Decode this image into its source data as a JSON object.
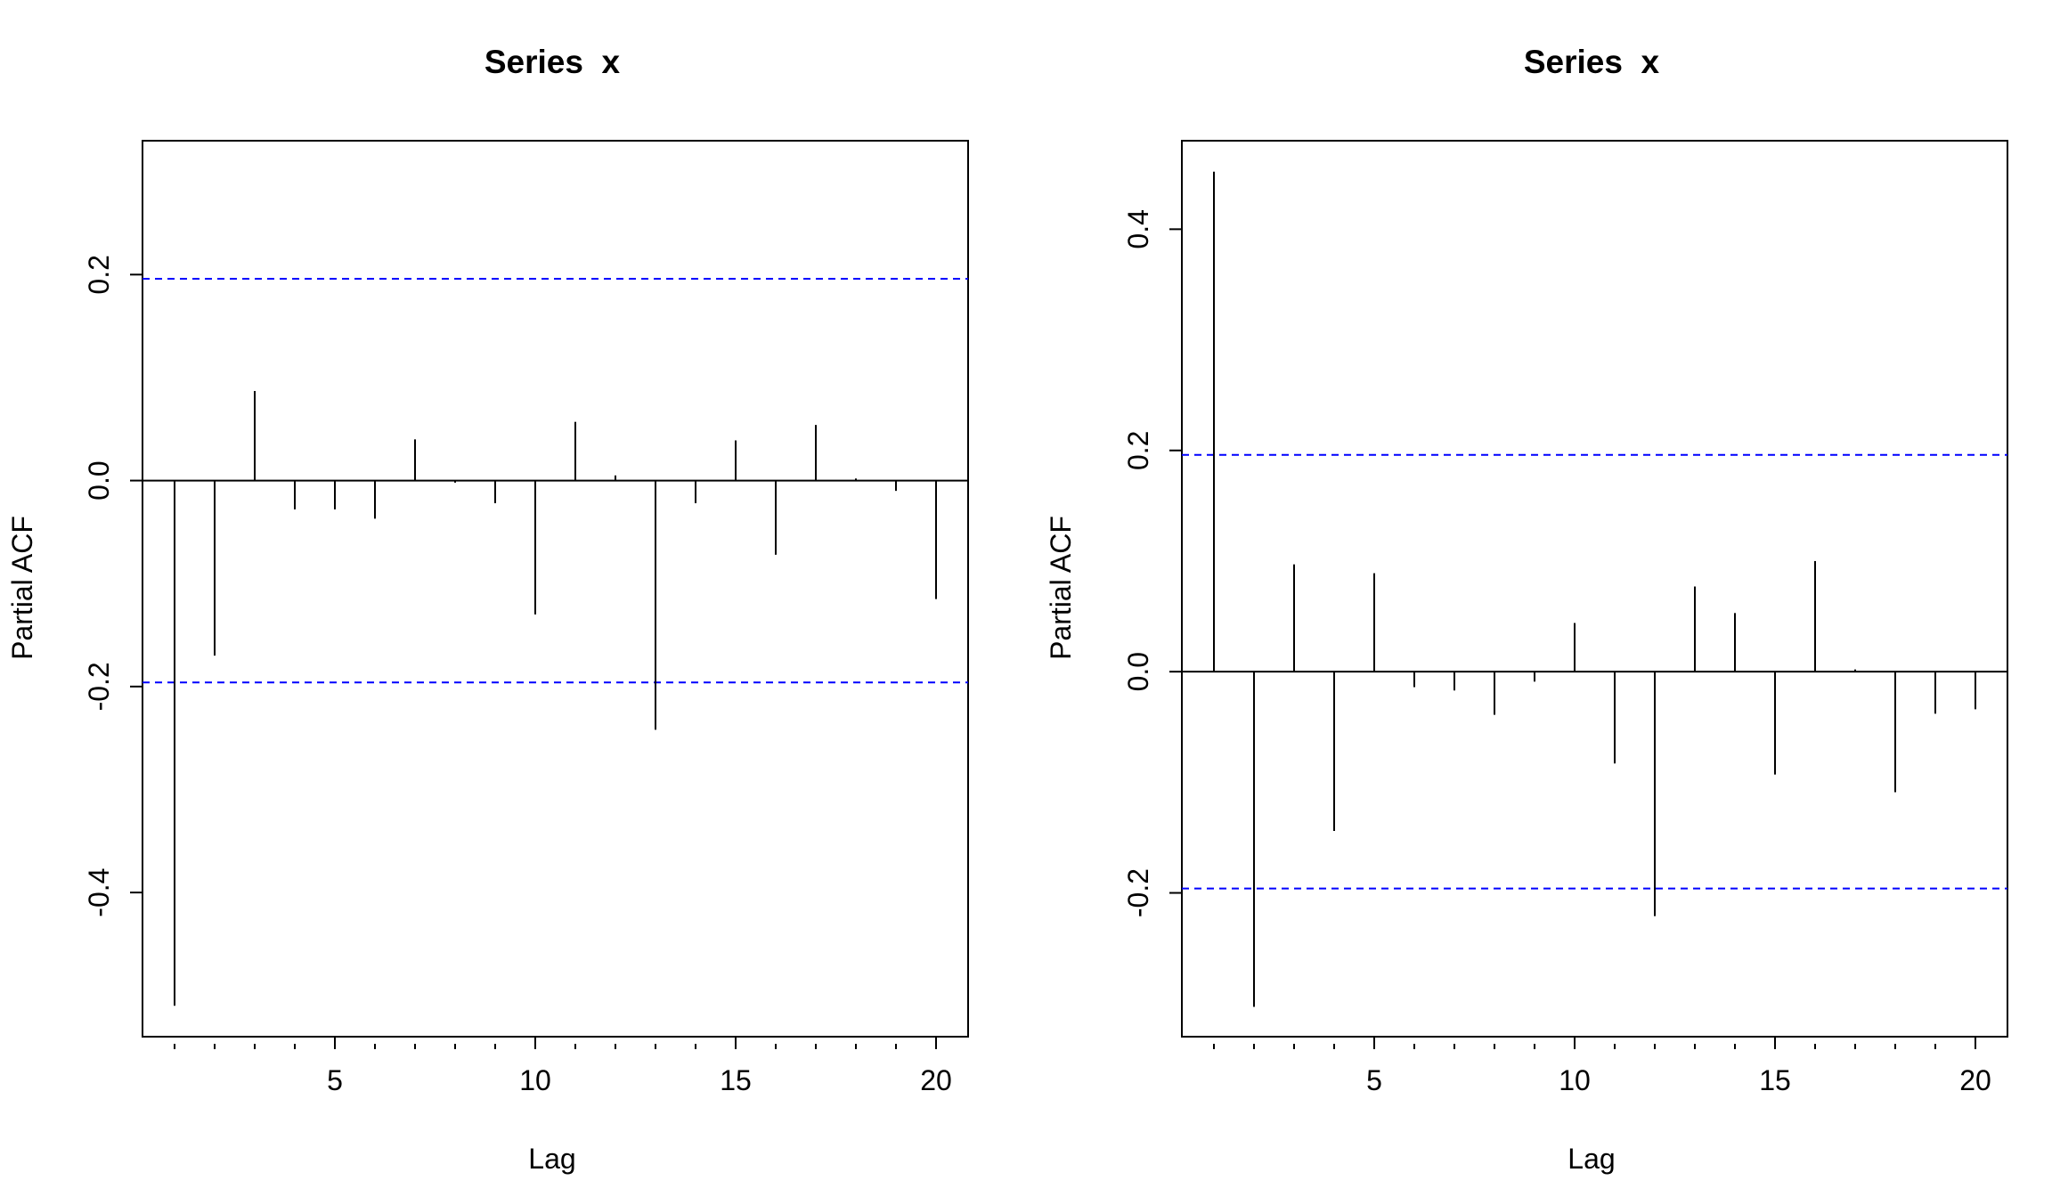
{
  "chart_data": [
    {
      "type": "bar",
      "title": "Series  x",
      "xlabel": "Lag",
      "ylabel": "Partial ACF",
      "xlim": [
        0.2,
        20.8
      ],
      "ylim": [
        -0.54,
        0.33
      ],
      "x_ticks": [
        5,
        10,
        15,
        20
      ],
      "y_ticks": [
        -0.4,
        -0.2,
        0.0,
        0.2
      ],
      "y_tick_labels": [
        "-0.4",
        "-0.2",
        "0.0",
        "0.2"
      ],
      "x": [
        1,
        2,
        3,
        4,
        5,
        6,
        7,
        8,
        9,
        10,
        11,
        12,
        13,
        14,
        15,
        16,
        17,
        18,
        19,
        20
      ],
      "values": [
        -0.51,
        -0.17,
        0.087,
        -0.028,
        -0.028,
        -0.037,
        0.04,
        -0.002,
        -0.022,
        -0.13,
        0.057,
        0.005,
        -0.242,
        -0.022,
        0.039,
        -0.072,
        0.054,
        0.002,
        -0.01,
        -0.115
      ],
      "ci_lines": [
        0.196,
        -0.196
      ],
      "ci_color": "#0000ff",
      "bar_color": "#000000",
      "grid": false
    },
    {
      "type": "bar",
      "title": "Series  x",
      "xlabel": "Lag",
      "ylabel": "Partial ACF",
      "xlim": [
        0.2,
        20.8
      ],
      "ylim": [
        -0.33,
        0.48
      ],
      "x_ticks": [
        5,
        10,
        15,
        20
      ],
      "y_ticks": [
        -0.2,
        0.0,
        0.2,
        0.4
      ],
      "y_tick_labels": [
        "-0.2",
        "0.0",
        "0.2",
        "0.4"
      ],
      "x": [
        1,
        2,
        3,
        4,
        5,
        6,
        7,
        8,
        9,
        10,
        11,
        12,
        13,
        14,
        15,
        16,
        17,
        18,
        19,
        20
      ],
      "values": [
        0.452,
        -0.303,
        0.097,
        -0.144,
        0.089,
        -0.014,
        -0.017,
        -0.039,
        -0.009,
        0.044,
        -0.083,
        -0.221,
        0.077,
        0.053,
        -0.093,
        0.1,
        0.002,
        -0.109,
        -0.038,
        -0.034
      ],
      "ci_lines": [
        0.196,
        -0.196
      ],
      "ci_color": "#0000ff",
      "bar_color": "#000000",
      "grid": false
    }
  ]
}
